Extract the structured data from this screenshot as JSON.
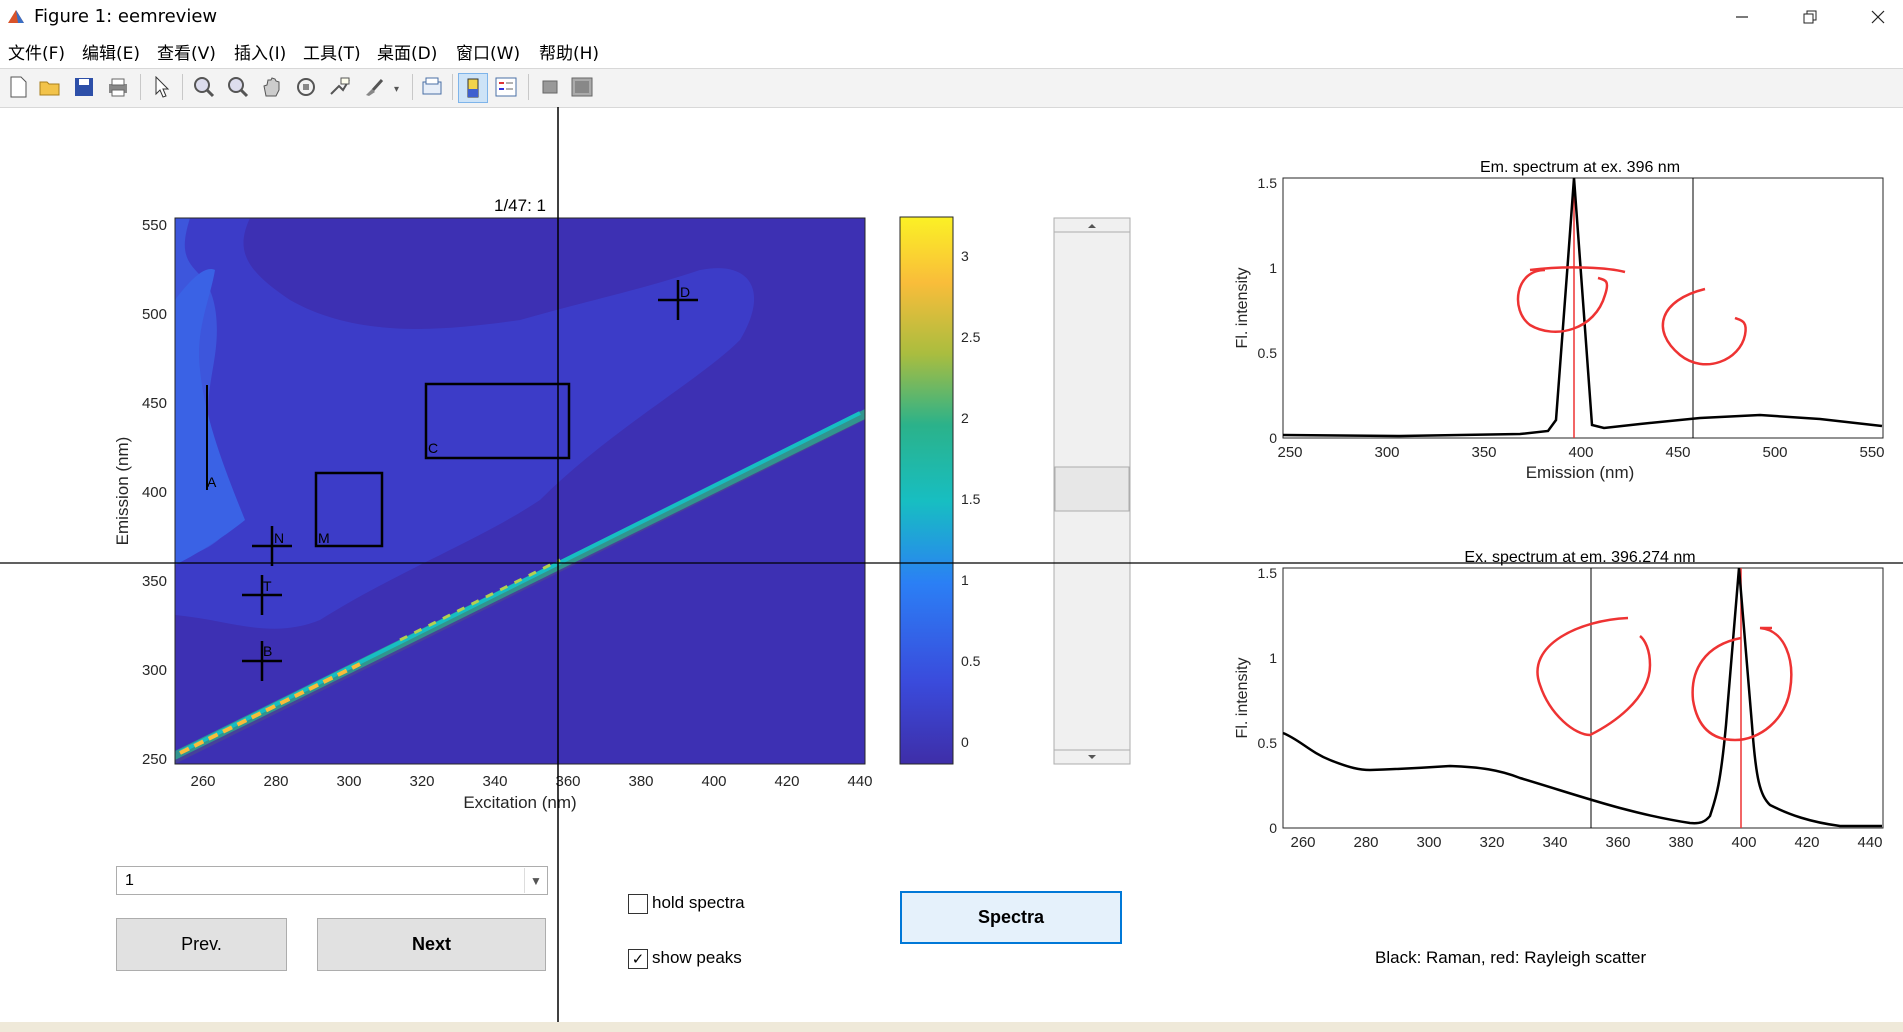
{
  "window": {
    "title": "Figure 1: eemreview",
    "min_icon": "minimize-icon",
    "restore_icon": "restore-icon",
    "close_icon": "close-icon"
  },
  "menu": [
    "文件(F)",
    "编辑(E)",
    "查看(V)",
    "插入(I)",
    "工具(T)",
    "桌面(D)",
    "窗口(W)",
    "帮助(H)"
  ],
  "toolbar_icons": [
    "new-figure-icon",
    "open-icon",
    "save-icon",
    "print-icon",
    "pointer-icon",
    "zoom-in-icon",
    "zoom-out-icon",
    "pan-icon",
    "rotate-icon",
    "data-cursor-icon",
    "brush-icon",
    "link-icon",
    "colorbar-icon",
    "legend-icon",
    "hide-tools-icon",
    "dock-icon"
  ],
  "eem_plot": {
    "title": "1/47:  1",
    "xlabel": "Excitation (nm)",
    "ylabel": "Emission (nm)",
    "xticks": [
      "260",
      "280",
      "300",
      "320",
      "340",
      "360",
      "380",
      "400",
      "420",
      "440"
    ],
    "yticks": [
      "550",
      "500",
      "450",
      "400",
      "350",
      "300",
      "250"
    ],
    "peak_labels": [
      "A",
      "B",
      "C",
      "D",
      "M",
      "N",
      "T"
    ]
  },
  "colorbar": {
    "ticks": [
      "3",
      "2.5",
      "2",
      "1.5",
      "1",
      "0.5",
      "0"
    ],
    "colors": [
      "#fbf125",
      "#f9bd3a",
      "#2bb28a",
      "#17bec2",
      "#2b7ff5",
      "#3a4bdc",
      "#3e2ea8"
    ]
  },
  "em_plot": {
    "title": "Em. spectrum at ex. 396 nm",
    "xlabel": "Emission (nm)",
    "ylabel": "Fl. intensity",
    "xticks": [
      "250",
      "300",
      "350",
      "400",
      "450",
      "500",
      "550"
    ],
    "yticks": [
      "1.5",
      "1",
      "0.5",
      "0"
    ]
  },
  "ex_plot": {
    "title": "Ex. spectrum at em. 396.274 nm",
    "ylabel": "Fl. intensity",
    "xticks": [
      "260",
      "280",
      "300",
      "320",
      "340",
      "360",
      "380",
      "400",
      "420",
      "440"
    ],
    "yticks": [
      "1.5",
      "1",
      "0.5",
      "0"
    ]
  },
  "controls": {
    "dropdown_value": "1",
    "prev_label": "Prev.",
    "next_label": "Next",
    "hold_spectra_label": "hold spectra",
    "hold_spectra_checked": false,
    "show_peaks_label": "show peaks",
    "show_peaks_checked": true,
    "spectra_button_label": "Spectra",
    "legend_note": "Black: Raman, red: Rayleigh scatter"
  }
}
